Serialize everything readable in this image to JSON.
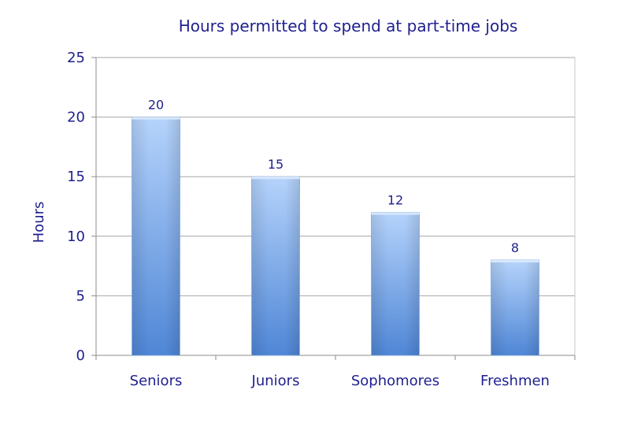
{
  "chart_data": {
    "type": "bar",
    "title": "Hours permitted  to spend at part-time jobs",
    "xlabel": "",
    "ylabel": "Hours",
    "categories": [
      "Seniors",
      "Juniors",
      "Sophomores",
      "Freshmen"
    ],
    "values": [
      20,
      15,
      12,
      8
    ],
    "data_labels": [
      "20",
      "15",
      "12",
      "8"
    ],
    "ylim": [
      0,
      25
    ],
    "yticks": [
      0,
      5,
      10,
      15,
      20,
      25
    ],
    "ytick_labels": [
      "0",
      "5",
      "10",
      "15",
      "20",
      "25"
    ],
    "grid": true,
    "legend": "none",
    "colors": {
      "bar_light": "#b5d3fb",
      "bar_dark": "#4f86d6",
      "text": "#1f1f8f",
      "grid": "#a6a6a6",
      "axis": "#8c8c8c"
    }
  }
}
